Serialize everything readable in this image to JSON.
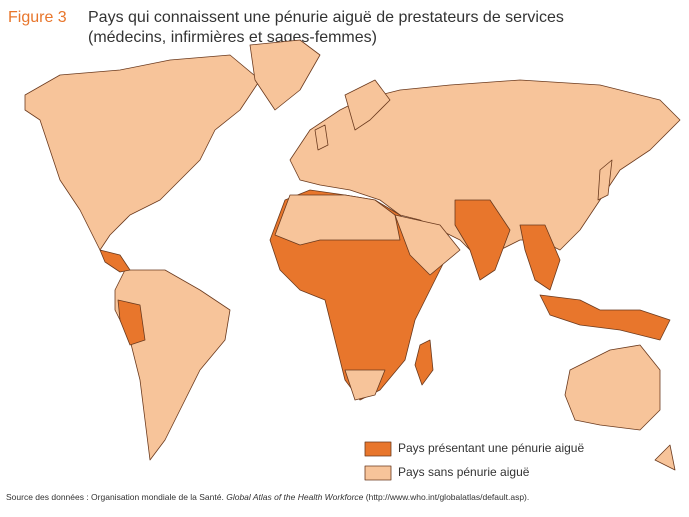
{
  "header": {
    "figure": "Figure 3",
    "title_line1": "Pays qui connaissent une pénurie aiguë de prestateurs de services",
    "title_line2": "(médecins, infirmières et sages-femmes)"
  },
  "legend": {
    "items": [
      {
        "label": "Pays présentant une pénurie aiguë",
        "color": "#e8762c"
      },
      {
        "label": "Pays sans pénurie aiguë",
        "color": "#f7c49a"
      }
    ]
  },
  "source": {
    "prefix": "Source des données : Organisation mondiale de la Santé.",
    "italic": "Global Atlas of the Health Workforce",
    "suffix": "(http://www.who.int/globalatlas/default.asp)."
  }
}
